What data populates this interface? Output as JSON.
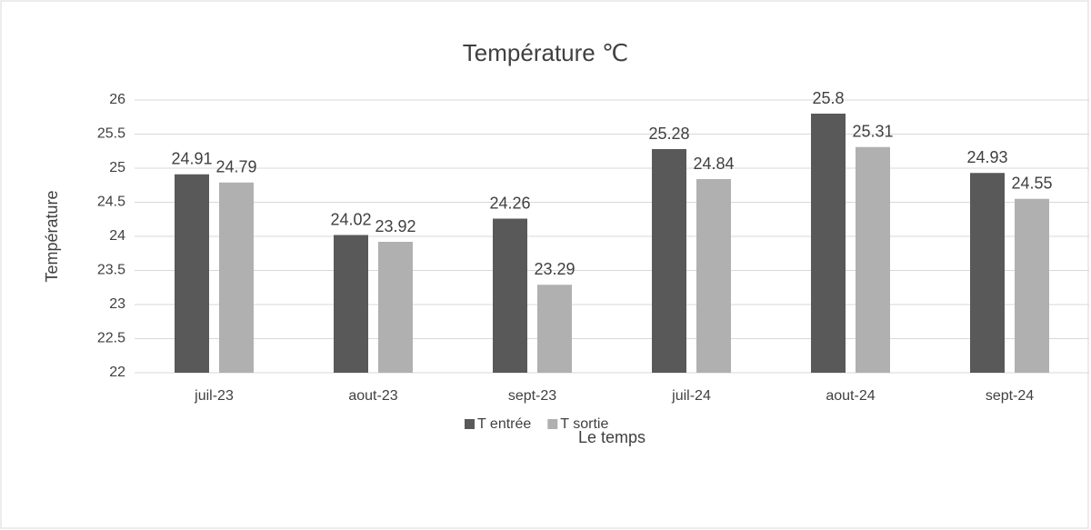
{
  "chart_data": {
    "type": "bar",
    "title": "Température ℃",
    "x_label": "Le temps",
    "y_label": "Température",
    "categories": [
      "juil-23",
      "aout-23",
      "sept-23",
      "juil-24",
      "aout-24",
      "sept-24"
    ],
    "series": [
      {
        "name": "T entrée",
        "color": "#595959",
        "values": [
          24.91,
          24.02,
          24.26,
          25.28,
          25.8,
          24.93
        ]
      },
      {
        "name": "T sortie",
        "color": "#b0b0b0",
        "values": [
          24.79,
          23.92,
          23.29,
          24.84,
          25.31,
          24.55
        ]
      }
    ],
    "ylim": [
      22,
      26
    ],
    "yticks": [
      22,
      22.5,
      23,
      23.5,
      24,
      24.5,
      25,
      25.5,
      26
    ],
    "grid": true,
    "legend": "bottom"
  }
}
